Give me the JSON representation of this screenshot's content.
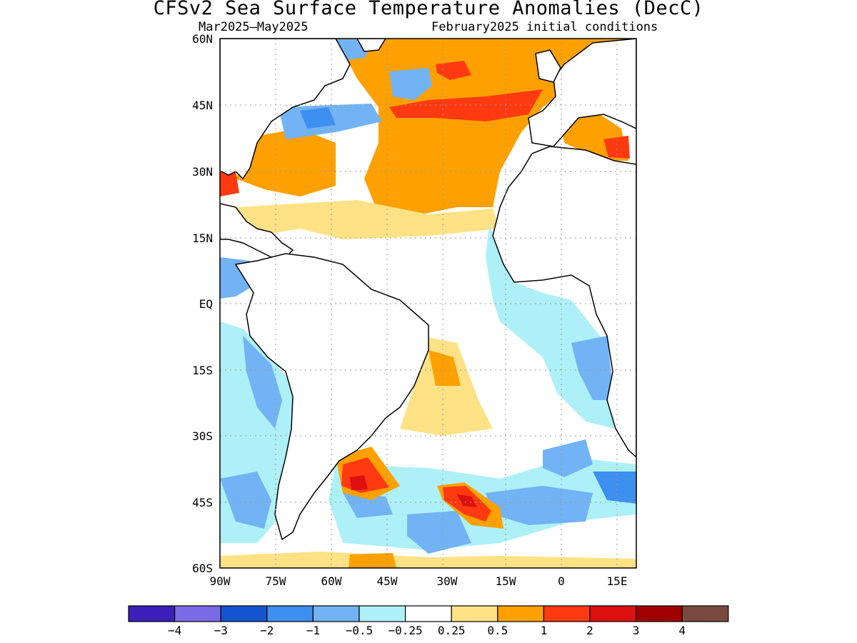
{
  "title": "CFSv2 Sea Surface Temperature Anomalies (DecC)",
  "subtitle_left": "Mar2025—May2025",
  "subtitle_right": "February2025 initial conditions",
  "lat_ticks": [
    "60N",
    "45N",
    "30N",
    "15N",
    "EQ",
    "15S",
    "30S",
    "45S",
    "60S"
  ],
  "lon_ticks": [
    "90W",
    "75W",
    "60W",
    "45W",
    "30W",
    "15W",
    "0",
    "15E"
  ],
  "legend": {
    "colors": [
      "#3a1fb8",
      "#7b6ae6",
      "#1554d0",
      "#3d8ff0",
      "#72b3f5",
      "#aef0f7",
      "#ffffff",
      "#fee285",
      "#fea000",
      "#ff3a10",
      "#dd1010",
      "#a00000",
      "#7a4a40"
    ],
    "labels": [
      "−4",
      "−3",
      "−2",
      "−1",
      "−0.5",
      "−0.25",
      "0.25",
      "0.5",
      "1",
      "2",
      "3",
      "4"
    ]
  },
  "colors": {
    "land_outline": "#000000",
    "grid": "#9a9a9a"
  }
}
